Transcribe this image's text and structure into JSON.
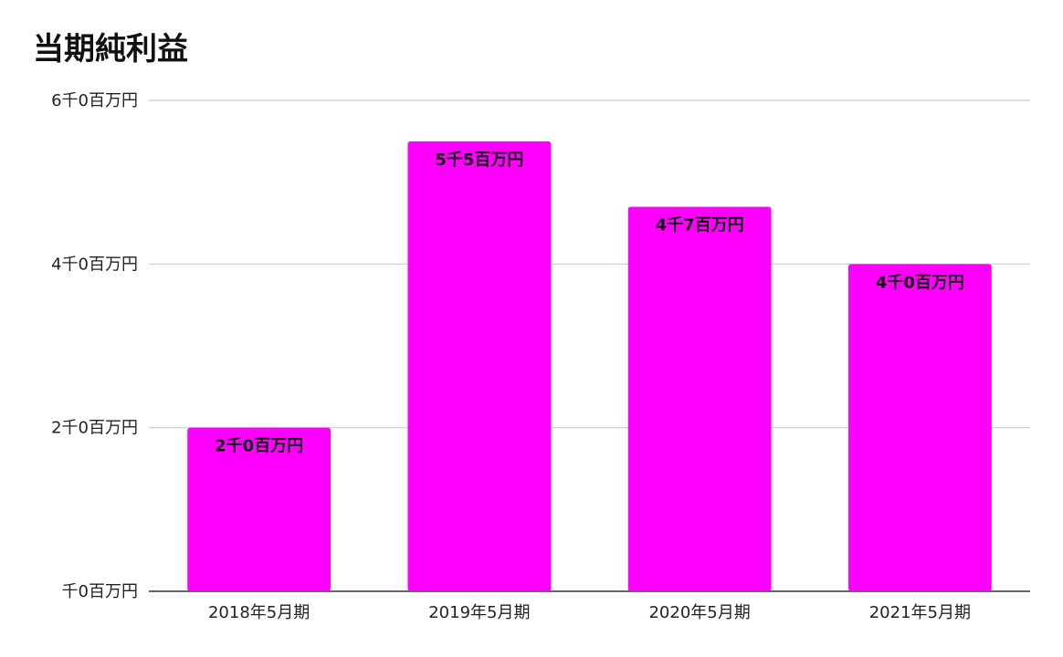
{
  "chart_data": {
    "type": "bar",
    "title": "当期純利益",
    "xlabel": "",
    "ylabel": "",
    "categories": [
      "2018年5月期",
      "2019年5月期",
      "2020年5月期",
      "2021年5月期"
    ],
    "values": [
      2000,
      5500,
      4700,
      4000
    ],
    "data_labels": [
      "2千0百万円",
      "5千5百万円",
      "4千7百万円",
      "4千0百万円"
    ],
    "y_ticks": [
      {
        "value": 0,
        "label": "千0百万円"
      },
      {
        "value": 2000,
        "label": "2千0百万円"
      },
      {
        "value": 4000,
        "label": "4千0百万円"
      },
      {
        "value": 6000,
        "label": "6千0百万円"
      }
    ],
    "ylim": [
      0,
      6000
    ],
    "grid": true,
    "legend": "none",
    "bar_color": "#ff00ff",
    "grid_color": "#cccccc",
    "axis_color": "#333333"
  }
}
